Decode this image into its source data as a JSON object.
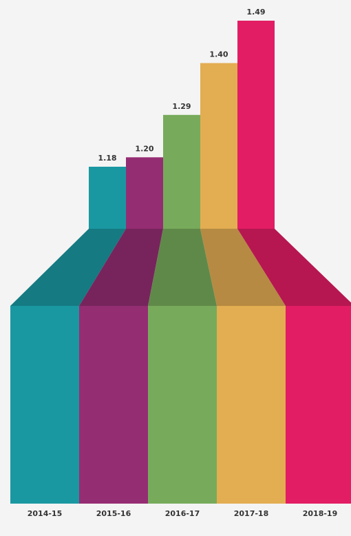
{
  "chart_data": {
    "type": "bar",
    "categories": [
      "2014-15",
      "2015-16",
      "2016-17",
      "2017-18",
      "2018-19"
    ],
    "values": [
      1.18,
      1.2,
      1.29,
      1.4,
      1.49
    ],
    "value_labels": [
      "1.18",
      "1.20",
      "1.29",
      "1.40",
      "1.49"
    ],
    "colors": [
      "#1a98a2",
      "#952d73",
      "#77ab5b",
      "#e3ad52",
      "#e31d64"
    ],
    "title": "",
    "xlabel": "",
    "ylabel": "",
    "grid": false,
    "legend": "none"
  }
}
